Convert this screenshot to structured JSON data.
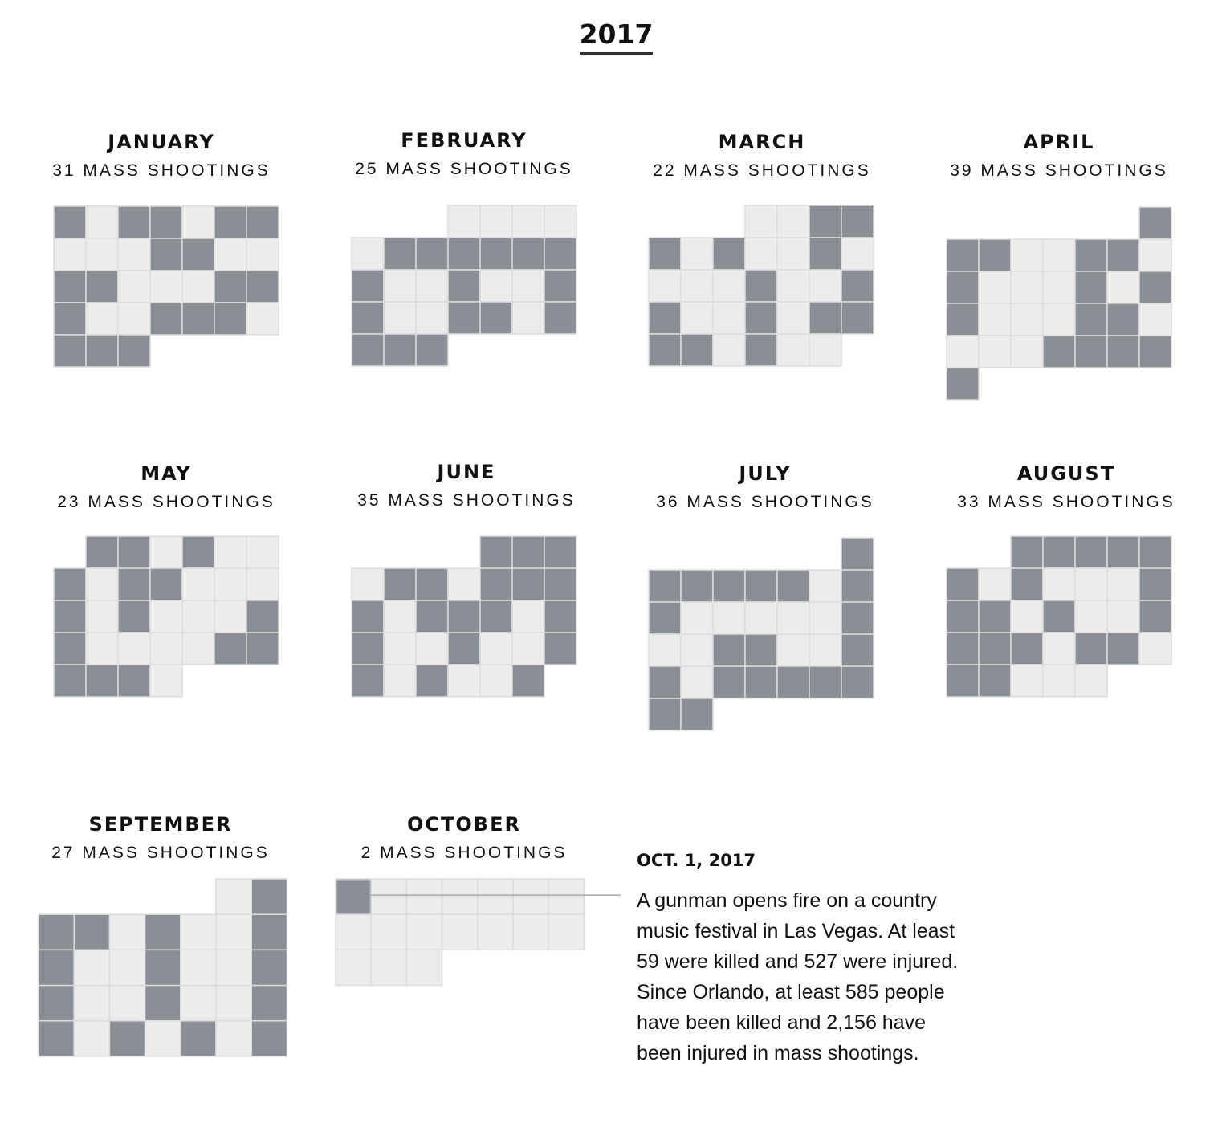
{
  "page": {
    "year": "2017"
  },
  "chart_data": {
    "type": "heatmap",
    "title": "2017",
    "description_encoding": "one square per calendar day, weeks as rows starting Sunday; dark square = day with a mass shooting",
    "colors": {
      "shooting_day": "#8a8f95",
      "no_shooting_day": "#ececec",
      "border": "#dcdcdc"
    },
    "months": [
      {
        "name": "JANUARY",
        "count_label": "31 MASS SHOOTINGS",
        "first_weekday": 0,
        "days": 31,
        "shooting_days": [
          1,
          3,
          4,
          6,
          7,
          11,
          12,
          15,
          16,
          20,
          21,
          22,
          25,
          26,
          27,
          29,
          30,
          31
        ]
      },
      {
        "name": "FEBRUARY",
        "count_label": "25 MASS SHOOTINGS",
        "first_weekday": 3,
        "days": 28,
        "shooting_days": [
          6,
          7,
          8,
          9,
          10,
          11,
          12,
          15,
          18,
          19,
          22,
          23,
          25,
          26,
          27,
          28
        ]
      },
      {
        "name": "MARCH",
        "count_label": "22 MASS SHOOTINGS",
        "first_weekday": 3,
        "days": 31,
        "shooting_days": [
          3,
          4,
          5,
          7,
          10,
          15,
          18,
          19,
          22,
          24,
          25,
          26,
          27,
          29
        ]
      },
      {
        "name": "APRIL",
        "count_label": "39 MASS SHOOTINGS",
        "first_weekday": 6,
        "days": 30,
        "shooting_days": [
          1,
          2,
          3,
          6,
          7,
          9,
          13,
          15,
          16,
          20,
          21,
          26,
          27,
          28,
          29,
          30
        ]
      },
      {
        "name": "MAY",
        "count_label": "23 MASS SHOOTINGS",
        "first_weekday": 1,
        "days": 31,
        "shooting_days": [
          1,
          2,
          4,
          7,
          9,
          10,
          14,
          16,
          20,
          21,
          26,
          27,
          28,
          29,
          30
        ]
      },
      {
        "name": "JUNE",
        "count_label": "35 MASS SHOOTINGS",
        "first_weekday": 4,
        "days": 30,
        "shooting_days": [
          1,
          2,
          3,
          5,
          6,
          8,
          9,
          10,
          11,
          13,
          14,
          15,
          17,
          18,
          21,
          24,
          25,
          27,
          30
        ]
      },
      {
        "name": "JULY",
        "count_label": "36 MASS SHOOTINGS",
        "first_weekday": 6,
        "days": 31,
        "shooting_days": [
          1,
          2,
          3,
          4,
          5,
          6,
          8,
          9,
          15,
          18,
          19,
          22,
          23,
          25,
          26,
          27,
          28,
          29,
          30,
          31
        ]
      },
      {
        "name": "AUGUST",
        "count_label": "33 MASS SHOOTINGS",
        "first_weekday": 2,
        "days": 31,
        "shooting_days": [
          1,
          2,
          3,
          4,
          5,
          6,
          8,
          12,
          13,
          14,
          16,
          19,
          20,
          21,
          22,
          24,
          25,
          27,
          28
        ]
      },
      {
        "name": "SEPTEMBER",
        "count_label": "27 MASS SHOOTINGS",
        "first_weekday": 5,
        "days": 30,
        "shooting_days": [
          2,
          3,
          4,
          6,
          9,
          10,
          13,
          16,
          17,
          20,
          23,
          24,
          26,
          28,
          30
        ]
      },
      {
        "name": "OCTOBER",
        "count_label": "2 MASS SHOOTINGS",
        "first_weekday": 0,
        "days": 17,
        "shooting_days": [
          1
        ],
        "highlight_day": 1
      }
    ],
    "annotation": {
      "date": "OCT. 1, 2017",
      "text": "A gunman opens fire on a country music festival in Las Vegas. At least 59 were killed and 527 were injured. Since Orlando, at least 585 people have been killed and 2,156 have been injured in mass shootings."
    }
  }
}
